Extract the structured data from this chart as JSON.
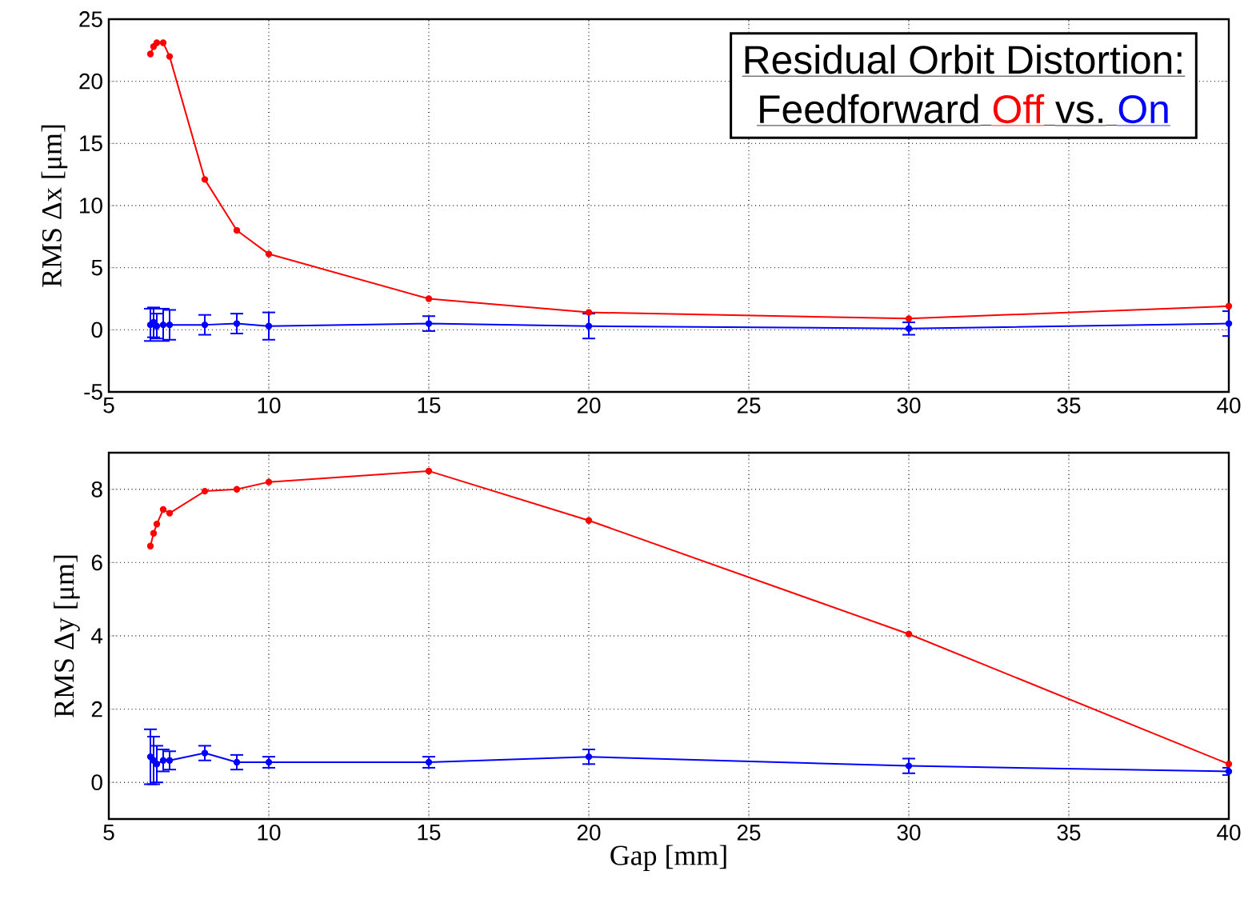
{
  "chart_data": [
    {
      "type": "line",
      "title": "Residual Orbit Distortion:",
      "subtitle": "Feedforward",
      "annotations": [
        "vs."
      ],
      "ylabel": "RMS Δx [μm]",
      "grid": true,
      "marker": "circle",
      "line_style": "solid",
      "x": [
        6.3,
        6.4,
        6.5,
        6.7,
        6.9,
        8,
        9,
        10,
        15,
        20,
        30,
        40
      ],
      "xlim": [
        5,
        40
      ],
      "xticks": [
        5,
        10,
        15,
        20,
        25,
        30,
        35,
        40
      ],
      "ylim": [
        -5,
        25
      ],
      "yticks": [
        -5,
        0,
        5,
        10,
        15,
        20,
        25
      ],
      "series": [
        {
          "name": "Off",
          "color": "#ff0000",
          "values": [
            22.2,
            22.8,
            23.1,
            23.1,
            22.0,
            12.1,
            8.0,
            6.1,
            2.5,
            1.4,
            0.9,
            1.9
          ]
        },
        {
          "name": "On",
          "color": "#0000ff",
          "values": [
            0.4,
            0.6,
            0.3,
            0.4,
            0.4,
            0.4,
            0.5,
            0.3,
            0.5,
            0.3,
            0.1,
            0.5
          ],
          "errors": [
            1.3,
            1.2,
            1.0,
            1.3,
            1.2,
            0.8,
            0.8,
            1.1,
            0.6,
            1.0,
            0.5,
            1.0
          ]
        }
      ]
    },
    {
      "type": "line",
      "ylabel": "RMS Δy [μm]",
      "xlabel": "Gap [mm]",
      "grid": true,
      "marker": "circle",
      "line_style": "solid",
      "x": [
        6.3,
        6.4,
        6.5,
        6.7,
        6.9,
        8,
        9,
        10,
        15,
        20,
        30,
        40
      ],
      "xlim": [
        5,
        40
      ],
      "xticks": [
        5,
        10,
        15,
        20,
        25,
        30,
        35,
        40
      ],
      "ylim": [
        -1,
        9
      ],
      "yticks": [
        0,
        2,
        4,
        6,
        8
      ],
      "series": [
        {
          "color": "#ff0000",
          "values": [
            6.45,
            6.8,
            7.05,
            7.45,
            7.35,
            7.95,
            8.0,
            8.2,
            8.5,
            7.15,
            4.05,
            0.5
          ]
        },
        {
          "color": "#0000ff",
          "values": [
            0.7,
            0.6,
            0.5,
            0.6,
            0.6,
            0.8,
            0.55,
            0.55,
            0.55,
            0.7,
            0.45,
            0.3
          ],
          "errors": [
            0.75,
            0.65,
            0.5,
            0.3,
            0.25,
            0.2,
            0.2,
            0.15,
            0.15,
            0.2,
            0.2,
            0.1
          ]
        }
      ]
    }
  ]
}
